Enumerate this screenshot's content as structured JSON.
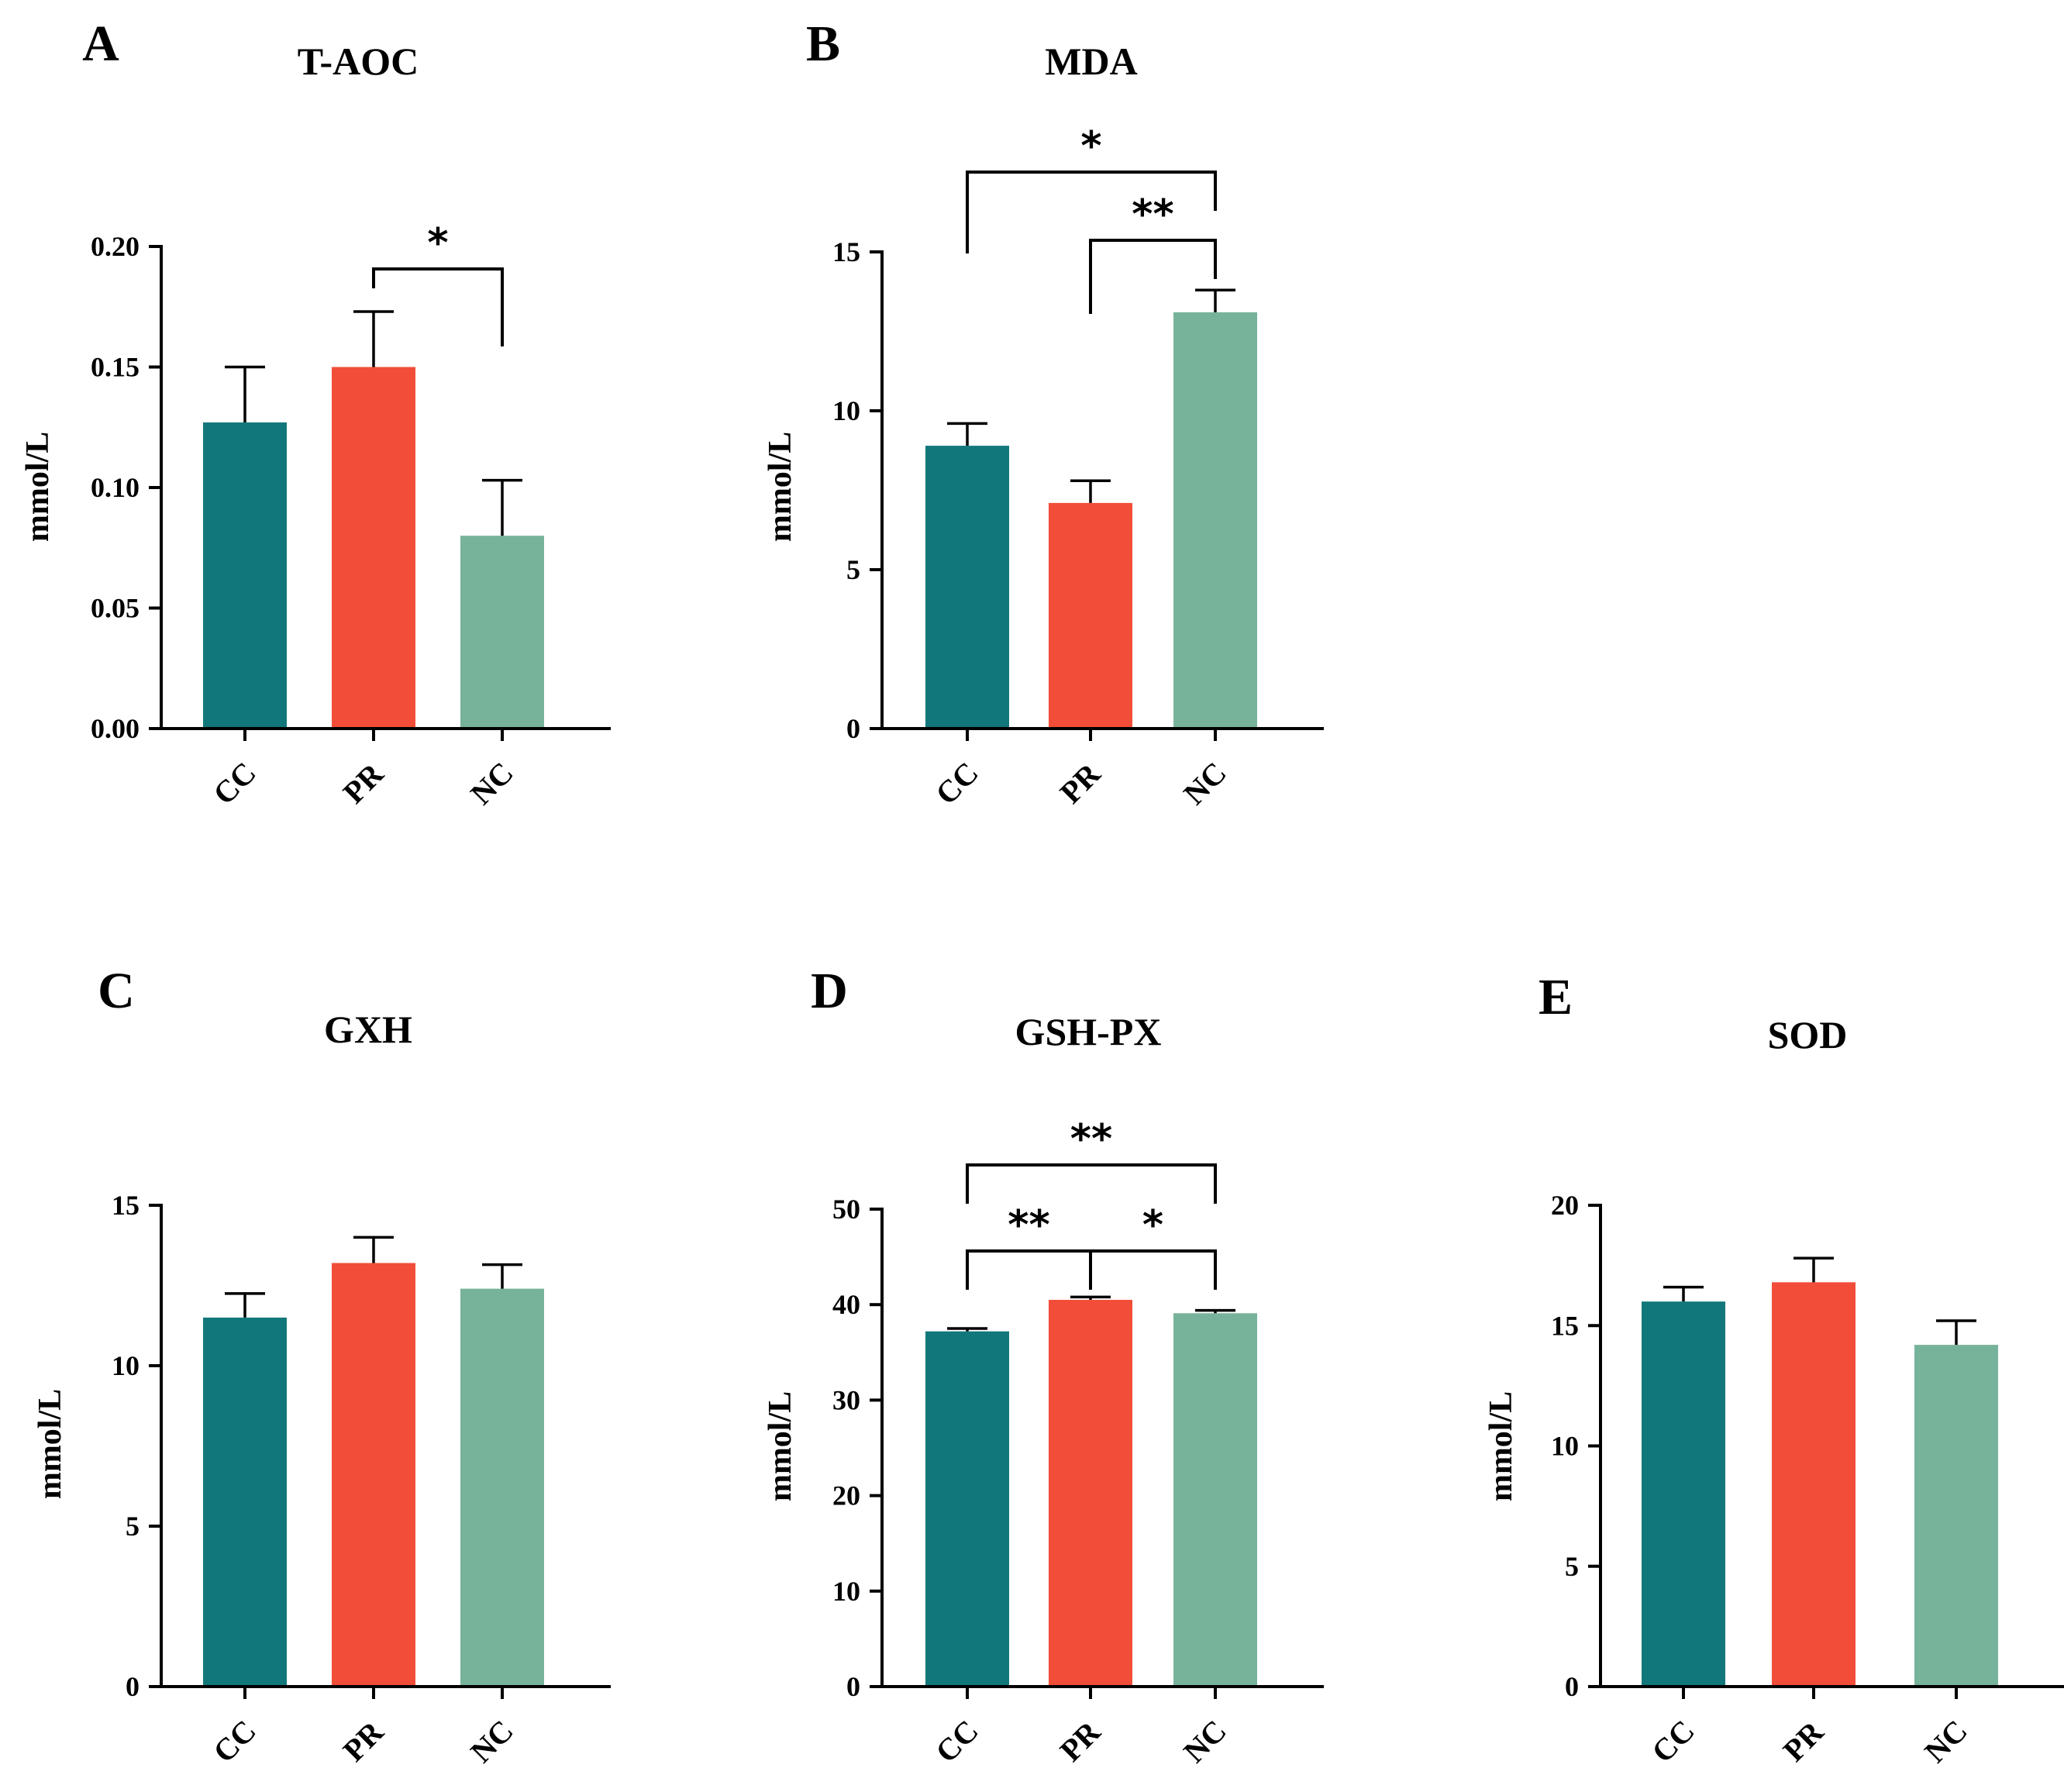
{
  "colors": {
    "CC": "#12777a",
    "PR": "#f24d38",
    "NC": "#77b39a"
  },
  "chart_data": [
    {
      "type": "bar",
      "letter": "A",
      "title": "T-AOC",
      "ylabel": "mmol/L",
      "xlabel": "",
      "categories": [
        "CC",
        "PR",
        "NC"
      ],
      "values": [
        0.127,
        0.15,
        0.08
      ],
      "errors": [
        0.023,
        0.023,
        0.023
      ],
      "ylim": [
        0,
        0.2
      ],
      "yticks": [
        0.0,
        0.05,
        0.1,
        0.15,
        0.2
      ],
      "ytick_labels": [
        "0.00",
        "0.05",
        "0.10",
        "0.15",
        "0.20"
      ],
      "significance": [
        {
          "from": 1,
          "to": 2,
          "label": "*"
        }
      ]
    },
    {
      "type": "bar",
      "letter": "B",
      "title": "MDA",
      "ylabel": "mmol/L",
      "xlabel": "",
      "categories": [
        "CC",
        "PR",
        "NC"
      ],
      "values": [
        8.9,
        7.1,
        13.1
      ],
      "errors": [
        0.7,
        0.7,
        0.7
      ],
      "ylim": [
        0,
        15
      ],
      "yticks": [
        0,
        5,
        10,
        15
      ],
      "ytick_labels": [
        "0",
        "5",
        "10",
        "15"
      ],
      "significance": [
        {
          "from": 1,
          "to": 2,
          "label": "**"
        },
        {
          "from": 0,
          "to": 2,
          "label": "*"
        }
      ]
    },
    {
      "type": "bar",
      "letter": "C",
      "title": "GXH",
      "ylabel": "mmol/L",
      "xlabel": "",
      "categories": [
        "CC",
        "PR",
        "NC"
      ],
      "values": [
        11.5,
        13.2,
        12.4
      ],
      "errors": [
        0.75,
        0.8,
        0.75
      ],
      "ylim": [
        0,
        15
      ],
      "yticks": [
        0,
        5,
        10,
        15
      ],
      "ytick_labels": [
        "0",
        "5",
        "10",
        "15"
      ],
      "significance": []
    },
    {
      "type": "bar",
      "letter": "D",
      "title": "GSH-PX",
      "ylabel": "mmol/L",
      "xlabel": "",
      "categories": [
        "CC",
        "PR",
        "NC"
      ],
      "values": [
        37.2,
        40.5,
        39.1
      ],
      "errors": [
        0.3,
        0.3,
        0.3
      ],
      "ylim": [
        0,
        50
      ],
      "yticks": [
        0,
        10,
        20,
        30,
        40,
        50
      ],
      "ytick_labels": [
        "0",
        "10",
        "20",
        "30",
        "40",
        "50"
      ],
      "significance": [
        {
          "from": 0,
          "to": 1,
          "label": "**"
        },
        {
          "from": 1,
          "to": 2,
          "label": "*"
        },
        {
          "from": 0,
          "to": 2,
          "label": "**"
        }
      ]
    },
    {
      "type": "bar",
      "letter": "E",
      "title": "SOD",
      "ylabel": "mmol/L",
      "xlabel": "",
      "categories": [
        "CC",
        "PR",
        "NC"
      ],
      "values": [
        16.0,
        16.8,
        14.2
      ],
      "errors": [
        0.6,
        1.0,
        1.0
      ],
      "ylim": [
        0,
        20
      ],
      "yticks": [
        0,
        5,
        10,
        15,
        20
      ],
      "ytick_labels": [
        "0",
        "5",
        "10",
        "15",
        "20"
      ],
      "significance": []
    }
  ]
}
